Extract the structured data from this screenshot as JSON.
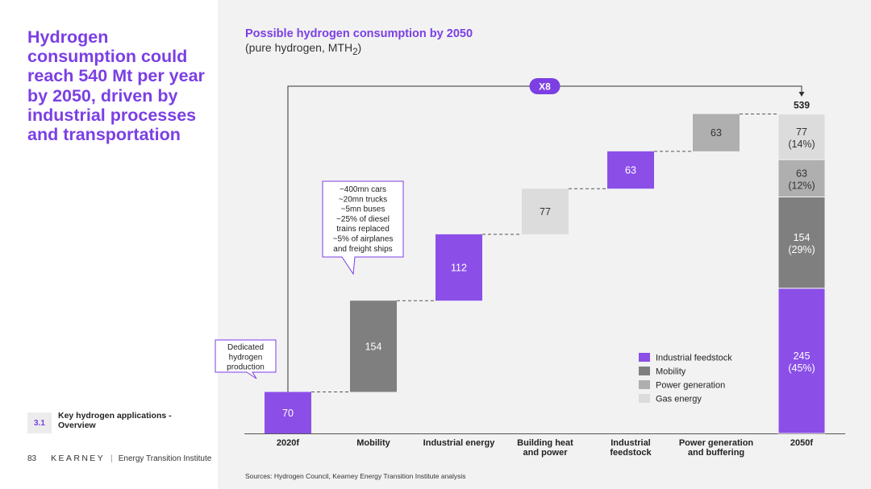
{
  "headline": "Hydrogen consumption could reach 540 Mt per year by 2050, driven by industrial processes and transportation",
  "section": {
    "number": "3.1",
    "title": "Key hydrogen applications - Overview"
  },
  "footer": {
    "page": "83",
    "brand": "KEARNEY",
    "separator": "|",
    "institute": "Energy Transition Institute"
  },
  "sources": "Sources: Hydrogen Council, Kearney Energy Transition Institute analysis",
  "colors": {
    "accent": "#7b3fe4",
    "industrial_feedstock": "#8b4fe8",
    "mobility": "#7f7f7f",
    "power_generation": "#afafaf",
    "gas_energy": "#dcdcdc"
  },
  "chart_data": {
    "type": "bar",
    "subtype": "waterfall",
    "title": "Possible hydrogen consumption by 2050",
    "subtitle_prefix": "(pure hydrogen, MTH",
    "subtitle_sub": "2",
    "subtitle_suffix": ")",
    "categories": [
      "2020f",
      "Mobility",
      "Industrial energy",
      "Building heat and power",
      "Industrial feedstock",
      "Power generation and buffering",
      "2050f"
    ],
    "category_lines": [
      [
        "2020f"
      ],
      [
        "Mobility"
      ],
      [
        "Industrial energy"
      ],
      [
        "Building heat",
        "and power"
      ],
      [
        "Industrial",
        "feedstock"
      ],
      [
        "Power generation",
        "and buffering"
      ],
      [
        "2050f"
      ]
    ],
    "steps": [
      {
        "category": "2020f",
        "value": 70,
        "type": "total",
        "series": "Industrial feedstock",
        "label": "70"
      },
      {
        "category": "Mobility",
        "value": 154,
        "type": "increment",
        "series": "Mobility",
        "label": "154"
      },
      {
        "category": "Industrial energy",
        "value": 112,
        "type": "increment",
        "series": "Industrial feedstock",
        "label": "112"
      },
      {
        "category": "Building heat and power",
        "value": 77,
        "type": "increment",
        "series": "Gas energy",
        "label": "77"
      },
      {
        "category": "Industrial feedstock",
        "value": 63,
        "type": "increment",
        "series": "Industrial feedstock",
        "label": "63"
      },
      {
        "category": "Power generation and buffering",
        "value": 63,
        "type": "increment",
        "series": "Power generation",
        "label": "63"
      }
    ],
    "final_stack": [
      {
        "series": "Industrial feedstock",
        "value": 245,
        "label": "245",
        "pct": "(45%)"
      },
      {
        "series": "Mobility",
        "value": 154,
        "label": "154",
        "pct": "(29%)"
      },
      {
        "series": "Power generation",
        "value": 63,
        "label": "63",
        "pct": "(12%)"
      },
      {
        "series": "Gas energy",
        "value": 77,
        "label": "77",
        "pct": "(14%)"
      }
    ],
    "final_total": 539,
    "final_total_label": "539",
    "multiplier_label": "X8",
    "legend": [
      "Industrial feedstock",
      "Mobility",
      "Power generation",
      "Gas energy"
    ],
    "legend_position": "right",
    "annotations": {
      "dedicated": [
        "Dedicated",
        "hydrogen",
        "production"
      ],
      "mobility": [
        "~400mn cars",
        "~20mn trucks",
        "~5mn buses",
        "~25% of diesel",
        "trains replaced",
        "~5% of airplanes",
        "and freight ships"
      ]
    },
    "ylim": [
      0,
      539
    ],
    "grid": false
  }
}
